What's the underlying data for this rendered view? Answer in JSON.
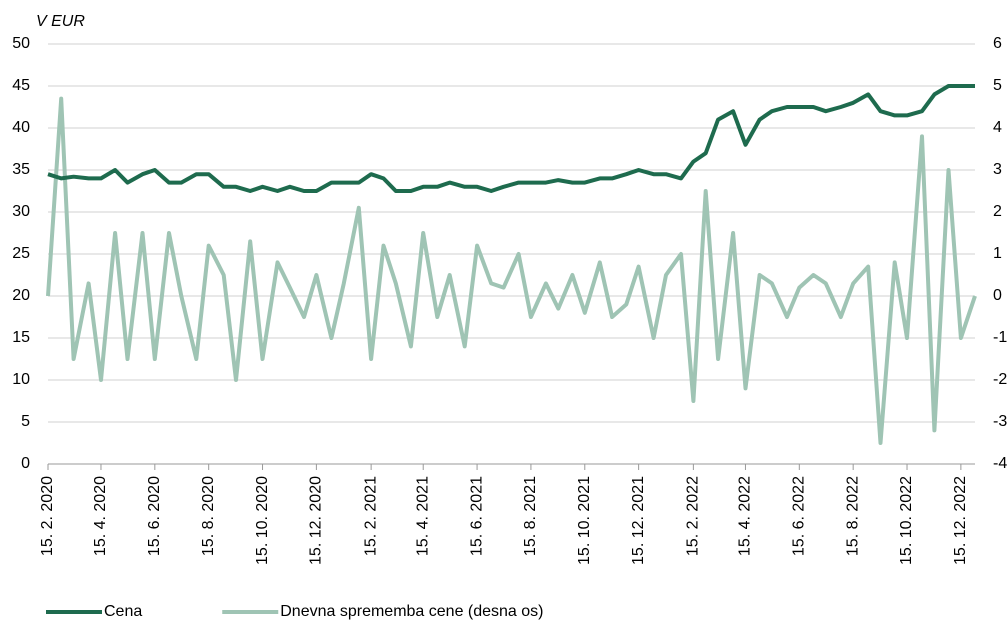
{
  "chart_data": {
    "type": "line",
    "y_label": "V EUR",
    "x": [
      "2020-02-15",
      "2020-03-01",
      "2020-03-15",
      "2020-04-01",
      "2020-04-15",
      "2020-05-01",
      "2020-05-15",
      "2020-06-01",
      "2020-06-15",
      "2020-07-01",
      "2020-07-15",
      "2020-08-01",
      "2020-08-15",
      "2020-09-01",
      "2020-09-15",
      "2020-10-01",
      "2020-10-15",
      "2020-11-01",
      "2020-11-15",
      "2020-12-01",
      "2020-12-15",
      "2021-01-01",
      "2021-01-15",
      "2021-02-01",
      "2021-02-15",
      "2021-03-01",
      "2021-03-15",
      "2021-04-01",
      "2021-04-15",
      "2021-05-01",
      "2021-05-15",
      "2021-06-01",
      "2021-06-15",
      "2021-07-01",
      "2021-07-15",
      "2021-08-01",
      "2021-08-15",
      "2021-09-01",
      "2021-09-15",
      "2021-10-01",
      "2021-10-15",
      "2021-11-01",
      "2021-11-15",
      "2021-12-01",
      "2021-12-15",
      "2022-01-01",
      "2022-01-15",
      "2022-02-01",
      "2022-02-15",
      "2022-03-01",
      "2022-03-15",
      "2022-04-01",
      "2022-04-15",
      "2022-05-01",
      "2022-05-15",
      "2022-06-01",
      "2022-06-15",
      "2022-07-01",
      "2022-07-15",
      "2022-08-01",
      "2022-08-15",
      "2022-09-01",
      "2022-09-15",
      "2022-10-01",
      "2022-10-15",
      "2022-11-01",
      "2022-11-15",
      "2022-12-01",
      "2022-12-15",
      "2022-12-31"
    ],
    "series": [
      {
        "name": "Cena",
        "color": "#1e6b4e",
        "axis": "y",
        "values": [
          34.5,
          34,
          34.2,
          34,
          34,
          35,
          33.5,
          34.5,
          35,
          33.5,
          33.5,
          34.5,
          34.5,
          33,
          33,
          32.5,
          33,
          32.5,
          33,
          32.5,
          32.5,
          33.5,
          33.5,
          33.5,
          34.5,
          34,
          32.5,
          32.5,
          33,
          33,
          33.5,
          33,
          33,
          32.5,
          33,
          33.5,
          33.5,
          33.5,
          33.8,
          33.5,
          33.5,
          34,
          34,
          34.5,
          35,
          34.5,
          34.5,
          34,
          36,
          37,
          41,
          42,
          38,
          41,
          42,
          42.5,
          42.5,
          42.5,
          42,
          42.5,
          43,
          44,
          42,
          41.5,
          41.5,
          42,
          44,
          45,
          45,
          45
        ]
      },
      {
        "name": "Dnevna sprememba cene (desna os)",
        "color": "#9fc4b4",
        "axis": "y2",
        "values": [
          0,
          4.7,
          -1.5,
          0.3,
          -2,
          1.5,
          -1.5,
          1.5,
          -1.5,
          1.5,
          0,
          -1.5,
          1.2,
          0.5,
          -2,
          1.3,
          -1.5,
          0.8,
          0.2,
          -0.5,
          0.5,
          -1,
          0.3,
          2.1,
          -1.5,
          1.2,
          0.3,
          -1.2,
          1.5,
          -0.5,
          0.5,
          -1.2,
          1.2,
          0.3,
          0.2,
          1,
          -0.5,
          0.3,
          -0.3,
          0.5,
          -0.4,
          0.8,
          -0.5,
          -0.2,
          0.7,
          -1,
          0.5,
          1,
          -2.5,
          2.5,
          -1.5,
          1.5,
          -2.2,
          0.5,
          0.3,
          -0.5,
          0.2,
          0.5,
          0.3,
          -0.5,
          0.3,
          0.7,
          -3.5,
          0.8,
          -1,
          3.8,
          -3.2,
          3,
          -1,
          0
        ]
      }
    ],
    "xlim": [
      "2020-02-15",
      "2022-12-31"
    ],
    "xticks": [
      {
        "value": "2020-02-15",
        "label": "15. 2. 2020"
      },
      {
        "value": "2020-04-15",
        "label": "15. 4. 2020"
      },
      {
        "value": "2020-06-15",
        "label": "15. 6. 2020"
      },
      {
        "value": "2020-08-15",
        "label": "15. 8. 2020"
      },
      {
        "value": "2020-10-15",
        "label": "15. 10. 2020"
      },
      {
        "value": "2020-12-15",
        "label": "15. 12. 2020"
      },
      {
        "value": "2021-02-15",
        "label": "15. 2. 2021"
      },
      {
        "value": "2021-04-15",
        "label": "15. 4. 2021"
      },
      {
        "value": "2021-06-15",
        "label": "15. 6. 2021"
      },
      {
        "value": "2021-08-15",
        "label": "15. 8. 2021"
      },
      {
        "value": "2021-10-15",
        "label": "15. 10. 2021"
      },
      {
        "value": "2021-12-15",
        "label": "15. 12. 2021"
      },
      {
        "value": "2022-02-15",
        "label": "15. 2. 2022"
      },
      {
        "value": "2022-04-15",
        "label": "15. 4. 2022"
      },
      {
        "value": "2022-06-15",
        "label": "15. 6. 2022"
      },
      {
        "value": "2022-08-15",
        "label": "15. 8. 2022"
      },
      {
        "value": "2022-10-15",
        "label": "15. 10. 2022"
      },
      {
        "value": "2022-12-15",
        "label": "15. 12. 2022"
      }
    ],
    "ylim": [
      0,
      50
    ],
    "yticks": [
      0,
      5,
      10,
      15,
      20,
      25,
      30,
      35,
      40,
      45,
      50
    ],
    "y2lim": [
      -4,
      6
    ],
    "y2ticks": [
      -4,
      -3,
      -2,
      -1,
      0,
      1,
      2,
      3,
      4,
      5,
      6
    ],
    "grid": true,
    "legend": "bottom-left"
  }
}
